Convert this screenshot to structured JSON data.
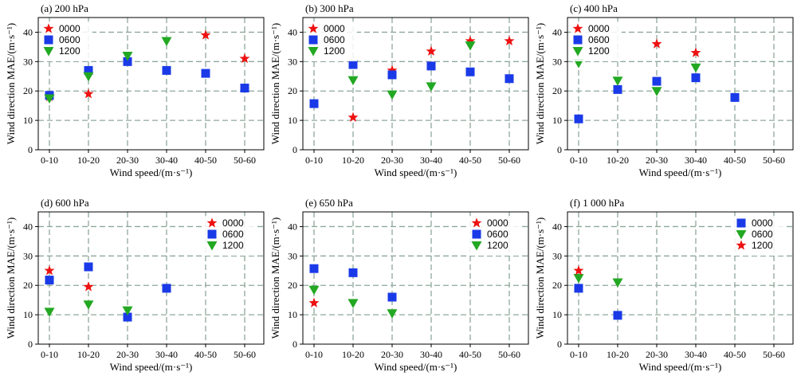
{
  "colors": {
    "0000": "#ee1111",
    "0600": "#1a3ae8",
    "1200": "#22a822",
    "grid": "#8fa89a"
  },
  "chart_data": [
    {
      "type": "scatter",
      "title": "(a) 200 hPa",
      "xlabel": "Wind speed/(m·s⁻¹)",
      "ylabel": "Wind direction MAE/(m·s⁻¹)",
      "categories": [
        "0-10",
        "10-20",
        "20-30",
        "30-40",
        "40-50",
        "50-60"
      ],
      "ylim": [
        0,
        45
      ],
      "yticks": [
        0,
        10,
        20,
        30,
        40
      ],
      "grid": true,
      "legend": "top-left",
      "series": [
        {
          "name": "0000",
          "marker": "star",
          "color": "#ee1111",
          "values": [
            18,
            19,
            null,
            null,
            39,
            31
          ]
        },
        {
          "name": "0600",
          "marker": "square",
          "color": "#1a3ae8",
          "values": [
            18.5,
            27,
            30,
            27,
            26,
            21
          ]
        },
        {
          "name": "1200",
          "marker": "triangle-down",
          "color": "#22a822",
          "values": [
            17.5,
            25,
            32,
            37,
            null,
            null
          ]
        }
      ]
    },
    {
      "type": "scatter",
      "title": "(b) 300 hPa",
      "xlabel": "Wind speed/(m·s⁻¹)",
      "ylabel": "Wind direction MAE/(m·s⁻¹)",
      "categories": [
        "0-10",
        "10-20",
        "20-30",
        "30-40",
        "40-50",
        "50-60"
      ],
      "ylim": [
        0,
        45
      ],
      "yticks": [
        0,
        10,
        20,
        30,
        40
      ],
      "grid": true,
      "legend": "top-left",
      "series": [
        {
          "name": "0000",
          "marker": "star",
          "color": "#ee1111",
          "values": [
            null,
            11,
            27,
            33.5,
            37,
            37
          ]
        },
        {
          "name": "0600",
          "marker": "square",
          "color": "#1a3ae8",
          "values": [
            15.7,
            29,
            25.5,
            28.5,
            26.5,
            24.2
          ]
        },
        {
          "name": "1200",
          "marker": "triangle-down",
          "color": "#22a822",
          "values": [
            null,
            23.7,
            18.8,
            21.6,
            35.5,
            null
          ]
        }
      ]
    },
    {
      "type": "scatter",
      "title": "(c) 400 hPa",
      "xlabel": "Wind speed/(m·s⁻¹)",
      "ylabel": "Wind direction MAE/(m·s⁻¹)",
      "categories": [
        "0-10",
        "10-20",
        "20-30",
        "30-40",
        "40-50",
        "50-60"
      ],
      "ylim": [
        0,
        45
      ],
      "yticks": [
        0,
        10,
        20,
        30,
        40
      ],
      "grid": true,
      "legend": "top-left",
      "series": [
        {
          "name": "0000",
          "marker": "star",
          "color": "#ee1111",
          "values": [
            null,
            null,
            36,
            33,
            null,
            null
          ]
        },
        {
          "name": "0600",
          "marker": "square",
          "color": "#1a3ae8",
          "values": [
            10.5,
            20.5,
            23.3,
            24.5,
            17.8,
            null
          ]
        },
        {
          "name": "1200",
          "marker": "triangle-down",
          "color": "#22a822",
          "values": [
            29.5,
            23.5,
            20,
            28,
            null,
            null
          ]
        }
      ]
    },
    {
      "type": "scatter",
      "title": "(d) 600 hPa",
      "xlabel": "Wind speed/(m·s⁻¹)",
      "ylabel": "Wind direction MAE/(m·s⁻¹)",
      "categories": [
        "0-10",
        "10-20",
        "20-30",
        "30-40",
        "40-50",
        "50-60"
      ],
      "ylim": [
        0,
        45
      ],
      "yticks": [
        0,
        10,
        20,
        30,
        40
      ],
      "grid": true,
      "legend": "top-right",
      "series": [
        {
          "name": "0000",
          "marker": "star",
          "color": "#ee1111",
          "values": [
            25,
            19.5,
            null,
            null,
            null,
            null
          ]
        },
        {
          "name": "0600",
          "marker": "square",
          "color": "#1a3ae8",
          "values": [
            21.8,
            26.3,
            9.2,
            19,
            null,
            null
          ]
        },
        {
          "name": "1200",
          "marker": "triangle-down",
          "color": "#22a822",
          "values": [
            11,
            13.5,
            11.5,
            null,
            null,
            null
          ]
        }
      ]
    },
    {
      "type": "scatter",
      "title": "(e) 650 hPa",
      "xlabel": "Wind speed/(m·s⁻¹)",
      "ylabel": "Wind direction MAE/(m·s⁻¹)",
      "categories": [
        "0-10",
        "10-20",
        "20-30",
        "30-40",
        "40-50",
        "50-60"
      ],
      "ylim": [
        0,
        45
      ],
      "yticks": [
        0,
        10,
        20,
        30,
        40
      ],
      "grid": true,
      "legend": "top-right",
      "series": [
        {
          "name": "0000",
          "marker": "star",
          "color": "#ee1111",
          "values": [
            14,
            null,
            null,
            null,
            null,
            null
          ]
        },
        {
          "name": "0600",
          "marker": "square",
          "color": "#1a3ae8",
          "values": [
            25.7,
            24.3,
            16,
            null,
            null,
            null
          ]
        },
        {
          "name": "1200",
          "marker": "triangle-down",
          "color": "#22a822",
          "values": [
            18.5,
            14,
            10.5,
            null,
            null,
            null
          ]
        }
      ]
    },
    {
      "type": "scatter",
      "title": "(f) 1 000 hPa",
      "xlabel": "Wind speed/(m·s⁻¹)",
      "ylabel": "Wind direction MAE/(m·s⁻¹)",
      "categories": [
        "0-10",
        "10-20",
        "20-30",
        "30-40",
        "40-50",
        "50-60"
      ],
      "ylim": [
        0,
        45
      ],
      "yticks": [
        0,
        10,
        20,
        30,
        40
      ],
      "grid": true,
      "legend": "top-right",
      "series": [
        {
          "name": "0000",
          "marker": "square",
          "color": "#1a3ae8",
          "values": [
            19,
            9.8,
            null,
            null,
            null,
            null
          ]
        },
        {
          "name": "0600",
          "marker": "triangle-down",
          "color": "#22a822",
          "values": [
            22.5,
            21,
            null,
            null,
            null,
            null
          ]
        },
        {
          "name": "1200",
          "marker": "star",
          "color": "#ee1111",
          "values": [
            25,
            null,
            null,
            null,
            null,
            null
          ]
        }
      ]
    }
  ]
}
